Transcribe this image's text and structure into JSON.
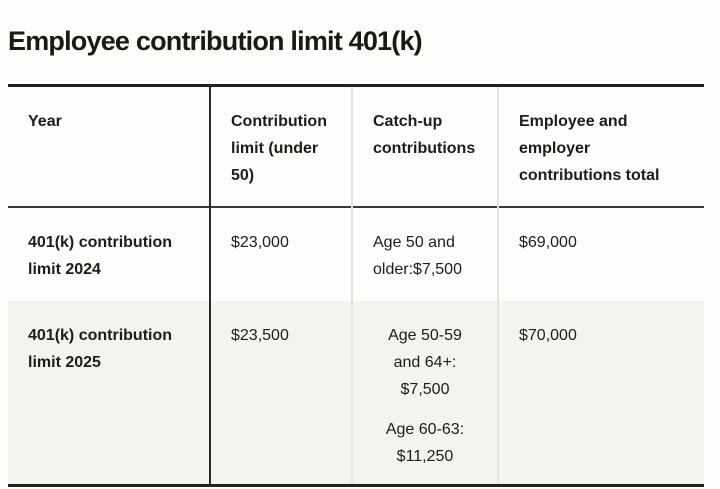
{
  "page": {
    "title": "Employee contribution limit 401(k)"
  },
  "table": {
    "headers": [
      "Year",
      "Contribution limit (under 50)",
      "Catch-up contributions",
      "Employee and employer contributions total"
    ],
    "rows": [
      {
        "year": "401(k) contribution limit 2024",
        "contribution_limit": "$23,000",
        "catch_up": [
          "Age 50 and older:$7,500"
        ],
        "total": "$69,000"
      },
      {
        "year": "401(k) contribution limit 2025",
        "contribution_limit": "$23,500",
        "catch_up": [
          "Age 50-59 and 64+: $7,500",
          "Age 60-63: $11,250"
        ],
        "total": "$70,000"
      }
    ]
  },
  "colors": {
    "text": "#1d1c19",
    "border_strong": "#23221e",
    "header_rule": "#3a3934",
    "divider_light": "#e4e3de",
    "alt_row_bg": "#f4f3f0",
    "page_bg": "#fdfdfb"
  },
  "chart_data": {
    "type": "table",
    "title": "Employee contribution limit 401(k)",
    "columns": [
      "Year",
      "Contribution limit (under 50)",
      "Catch-up contributions",
      "Employee and employer contributions total"
    ],
    "rows": [
      [
        "401(k) contribution limit 2024",
        "$23,000",
        "Age 50 and older:$7,500",
        "$69,000"
      ],
      [
        "401(k) contribution limit 2025",
        "$23,500",
        "Age 50-59 and 64+: $7,500; Age 60-63: $11,250",
        "$70,000"
      ]
    ]
  }
}
